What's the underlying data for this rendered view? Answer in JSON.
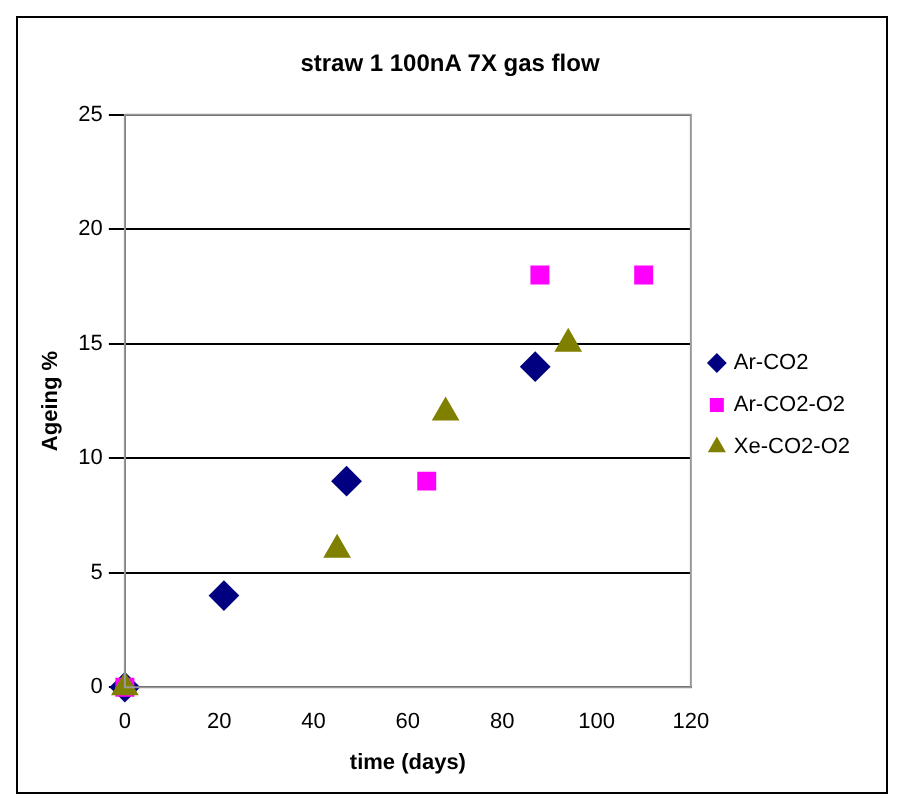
{
  "chart_data": {
    "type": "scatter",
    "title": "straw 1 100nA 7X gas flow",
    "xlabel": "time (days)",
    "ylabel": "Ageing %",
    "series": [
      {
        "name": "Ar-CO2",
        "color": "#000080",
        "marker": "diamond",
        "x": [
          0,
          21,
          47,
          87
        ],
        "values": [
          0,
          4,
          9,
          14
        ]
      },
      {
        "name": "Ar-CO2-O2",
        "color": "#ff00ff",
        "marker": "square",
        "x": [
          0,
          64,
          88,
          110
        ],
        "values": [
          0,
          9,
          18,
          18
        ]
      },
      {
        "name": "Xe-CO2-O2",
        "color": "#808000",
        "marker": "triangle",
        "x": [
          0,
          45,
          68,
          94
        ],
        "values": [
          0,
          6,
          12,
          15
        ]
      }
    ],
    "xlim": [
      0,
      120
    ],
    "xticks": [
      0,
      20,
      40,
      60,
      80,
      100,
      120
    ],
    "ylim": [
      0,
      25
    ],
    "yticks": [
      0,
      5,
      10,
      15,
      20,
      25
    ],
    "grid": "y",
    "legend": "right"
  }
}
